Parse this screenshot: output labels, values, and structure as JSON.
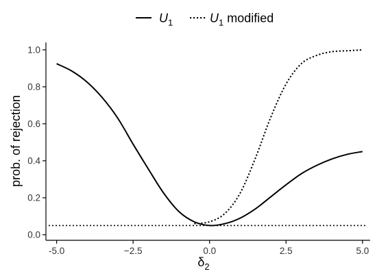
{
  "chart_data": {
    "type": "line",
    "xlabel_main": "δ",
    "xlabel_sub": "2",
    "ylabel": "prob. of rejection",
    "xlim": [
      -5.35,
      5.25
    ],
    "ylim": [
      -0.03,
      1.04
    ],
    "x_ticks": [
      -5.0,
      -2.5,
      0.0,
      2.5,
      5.0
    ],
    "x_tick_labels": [
      "-5.0",
      "−2.5",
      "0.0",
      "2.5",
      "5.0"
    ],
    "y_ticks": [
      0.0,
      0.2,
      0.4,
      0.6,
      0.8,
      1.0
    ],
    "y_tick_labels": [
      "0.0",
      "0.2",
      "0.4",
      "0.6",
      "0.8",
      "1.0"
    ],
    "grid": false,
    "legend_position": "top",
    "reference_line": {
      "y": 0.05,
      "style": "dotted"
    },
    "series": [
      {
        "name_main": "U",
        "name_sub": "1",
        "name_suffix": "",
        "style": "solid",
        "x": [
          -5.0,
          -4.5,
          -4.0,
          -3.5,
          -3.0,
          -2.5,
          -2.0,
          -1.5,
          -1.0,
          -0.5,
          0.0,
          0.5,
          1.0,
          1.5,
          2.0,
          2.5,
          3.0,
          3.5,
          4.0,
          4.5,
          5.0
        ],
        "y": [
          0.925,
          0.885,
          0.825,
          0.74,
          0.63,
          0.49,
          0.355,
          0.225,
          0.125,
          0.07,
          0.05,
          0.06,
          0.09,
          0.14,
          0.205,
          0.27,
          0.33,
          0.375,
          0.41,
          0.435,
          0.45
        ]
      },
      {
        "name_main": "U",
        "name_sub": "1",
        "name_suffix": " modified",
        "style": "dotted",
        "x": [
          -0.5,
          0.0,
          0.5,
          1.0,
          1.5,
          2.0,
          2.5,
          3.0,
          3.5,
          4.0,
          4.5,
          5.0
        ],
        "y": [
          0.06,
          0.07,
          0.115,
          0.225,
          0.415,
          0.635,
          0.815,
          0.925,
          0.97,
          0.99,
          0.995,
          1.0
        ]
      }
    ]
  }
}
